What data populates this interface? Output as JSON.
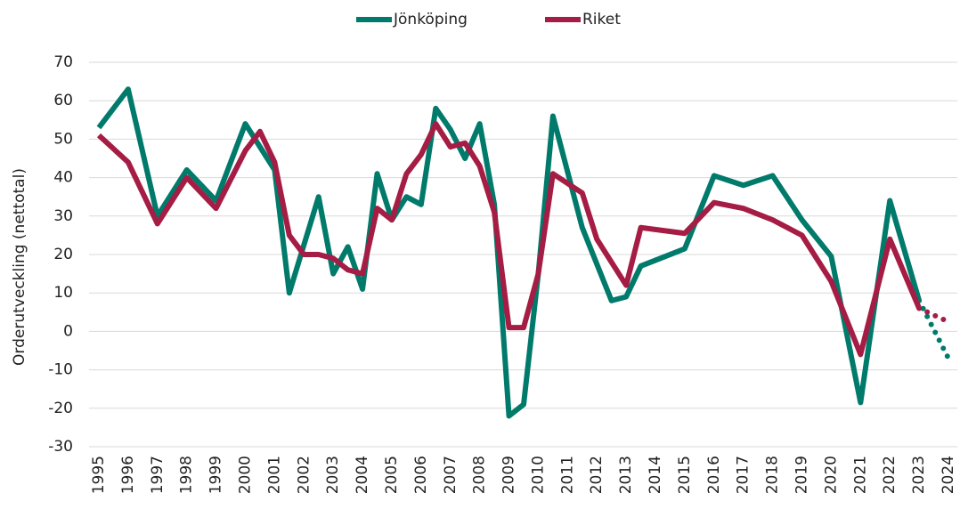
{
  "chart_data": {
    "type": "line",
    "y_label": "Orderutveckling (nettotal)",
    "ylim": [
      -30,
      70
    ],
    "yticks": [
      -30,
      -20,
      -10,
      0,
      10,
      20,
      30,
      40,
      50,
      60,
      70
    ],
    "grid": true,
    "xlim": [
      1995,
      2024
    ],
    "xticks": [
      1995,
      1996,
      1997,
      1998,
      1999,
      2000,
      2001,
      2002,
      2003,
      2004,
      2005,
      2006,
      2007,
      2008,
      2009,
      2010,
      2011,
      2012,
      2013,
      2014,
      2015,
      2016,
      2017,
      2018,
      2019,
      2020,
      2021,
      2022,
      2023,
      2024
    ],
    "legend": "top",
    "series": [
      {
        "name": "Jönköping",
        "color": "#007a6a",
        "x": [
          1995,
          1996,
          1997,
          1998,
          1999,
          2000,
          2001,
          2001.5,
          2002.5,
          2003,
          2003.5,
          2004,
          2004.5,
          2005,
          2005.5,
          2006,
          2006.5,
          2007,
          2007.5,
          2008,
          2008.5,
          2009,
          2009.5,
          2010,
          2010.5,
          2011.5,
          2012.5,
          2013,
          2013.5,
          2015,
          2016,
          2017,
          2018,
          2019,
          2020,
          2021,
          2022,
          2023
        ],
        "values": [
          53,
          63,
          30,
          42,
          34,
          54,
          42,
          10,
          35,
          15,
          22,
          11,
          41,
          29,
          35,
          33,
          58,
          52.5,
          45,
          54,
          33,
          -22,
          -19,
          15,
          56,
          27,
          8,
          9,
          17,
          21.5,
          40.5,
          38,
          40.5,
          29,
          19.5,
          -18.5,
          34,
          8
        ],
        "forecast": {
          "x": [
            2023,
            2024
          ],
          "values": [
            8,
            -7
          ]
        }
      },
      {
        "name": "Riket",
        "color": "#a51c44",
        "x": [
          1995,
          1996,
          1997,
          1998,
          1999,
          2000,
          2000.5,
          2001,
          2001.5,
          2002,
          2002.5,
          2003,
          2003.5,
          2004,
          2004.5,
          2005,
          2005.5,
          2006,
          2006.5,
          2007,
          2007.5,
          2008,
          2008.5,
          2009,
          2009.5,
          2010,
          2010.5,
          2011.5,
          2012,
          2013,
          2013.5,
          2015,
          2016,
          2017,
          2018,
          2019,
          2020,
          2021,
          2022,
          2023
        ],
        "values": [
          51,
          44,
          28,
          40,
          32,
          47,
          52,
          44,
          25,
          20,
          20,
          19,
          16,
          15,
          32,
          29,
          41,
          46,
          54,
          48,
          49,
          43,
          31,
          1,
          1,
          15,
          41,
          36,
          24,
          12,
          27,
          25.5,
          33.5,
          32,
          29,
          25,
          13,
          -6,
          24,
          6
        ],
        "forecast": {
          "x": [
            2023,
            2024
          ],
          "values": [
            6,
            2.5
          ]
        }
      }
    ]
  }
}
